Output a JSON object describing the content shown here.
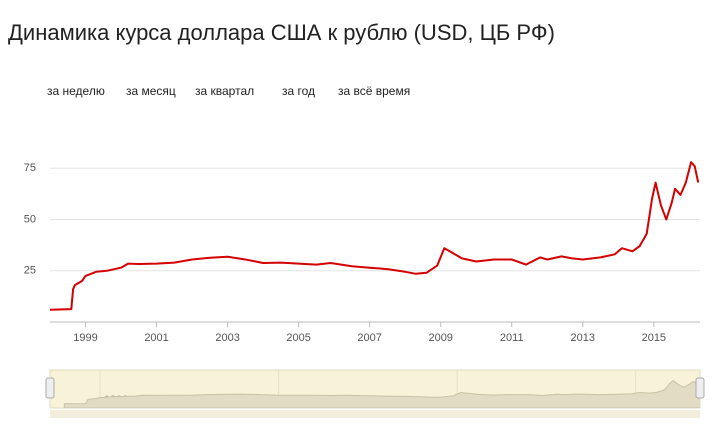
{
  "tabs": [
    "за неделю",
    "за месяц",
    "за квартал",
    "за год",
    "за всё время"
  ],
  "chart_data": {
    "type": "line",
    "title": "Динамика курса доллара США к рублю (USD, ЦБ РФ)",
    "color": "#d40000",
    "grid": true,
    "x": [
      1998.0,
      1998.6,
      1998.65,
      1998.7,
      1998.9,
      1999.0,
      1999.3,
      1999.6,
      2000.0,
      2000.2,
      2000.5,
      2001.0,
      2001.5,
      2002.0,
      2002.5,
      2003.0,
      2003.5,
      2004.0,
      2004.5,
      2005.0,
      2005.5,
      2005.9,
      2006.5,
      2007.0,
      2007.5,
      2008.0,
      2008.3,
      2008.6,
      2008.9,
      2009.1,
      2009.3,
      2009.6,
      2010.0,
      2010.5,
      2011.0,
      2011.4,
      2011.8,
      2012.0,
      2012.4,
      2012.7,
      2013.0,
      2013.5,
      2013.9,
      2014.1,
      2014.4,
      2014.6,
      2014.8,
      2014.95,
      2015.05,
      2015.2,
      2015.35,
      2015.5,
      2015.6,
      2015.75,
      2015.9,
      2016.05,
      2016.15,
      2016.25
    ],
    "values": [
      6.0,
      6.3,
      16,
      18,
      20,
      22.5,
      24.5,
      25,
      26.5,
      28.5,
      28.3,
      28.5,
      29,
      30.5,
      31.3,
      31.8,
      30.5,
      28.8,
      29,
      28.5,
      28,
      28.8,
      27.2,
      26.5,
      25.8,
      24.5,
      23.5,
      24,
      27.5,
      36,
      34,
      31,
      29.5,
      30.5,
      30.5,
      28,
      31.5,
      30.5,
      32,
      31,
      30.5,
      31.5,
      33,
      36,
      34.5,
      37,
      43,
      60,
      68,
      57,
      50,
      58,
      65,
      62,
      68,
      78,
      76,
      68
    ],
    "xlim": [
      1998,
      2016.3
    ],
    "xticks": [
      1999,
      2001,
      2003,
      2005,
      2007,
      2009,
      2011,
      2013,
      2015
    ],
    "ylim": [
      0,
      100
    ],
    "yticks": [
      25,
      50,
      75
    ],
    "navigator": {
      "type": "area",
      "xlim": [
        1997.6,
        2015.8
      ],
      "xticks": [
        1999,
        2004,
        2009,
        2014
      ]
    }
  }
}
